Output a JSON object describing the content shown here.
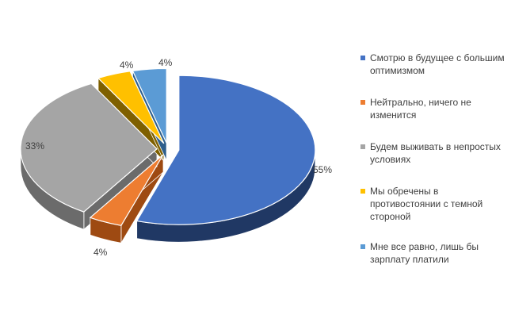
{
  "chart_data": {
    "type": "pie",
    "title": "",
    "slices": [
      {
        "label": "Смотрю в будущее с большим оптимизмом",
        "value": 55,
        "value_label": "55%",
        "color": "#4472C4",
        "side_color": "#203864"
      },
      {
        "label": "Нейтрально, ничего не изменится",
        "value": 4,
        "value_label": "4%",
        "color": "#ED7D31",
        "side_color": "#9E4A12"
      },
      {
        "label": "Будем выживать в непростых условиях",
        "value": 33,
        "value_label": "33%",
        "color": "#A5A5A5",
        "side_color": "#6B6B6B"
      },
      {
        "label": "Мы обречены в противостоянии с темной стороной",
        "value": 4,
        "value_label": "4%",
        "color": "#FFC000",
        "side_color": "#7F6000"
      },
      {
        "label": "Мне все равно, лишь бы зарплату платили",
        "value": 4,
        "value_label": "4%",
        "color": "#5B9BD5",
        "side_color": "#2E5F8C"
      }
    ],
    "style": "3d-exploded",
    "legend_position": "right"
  }
}
